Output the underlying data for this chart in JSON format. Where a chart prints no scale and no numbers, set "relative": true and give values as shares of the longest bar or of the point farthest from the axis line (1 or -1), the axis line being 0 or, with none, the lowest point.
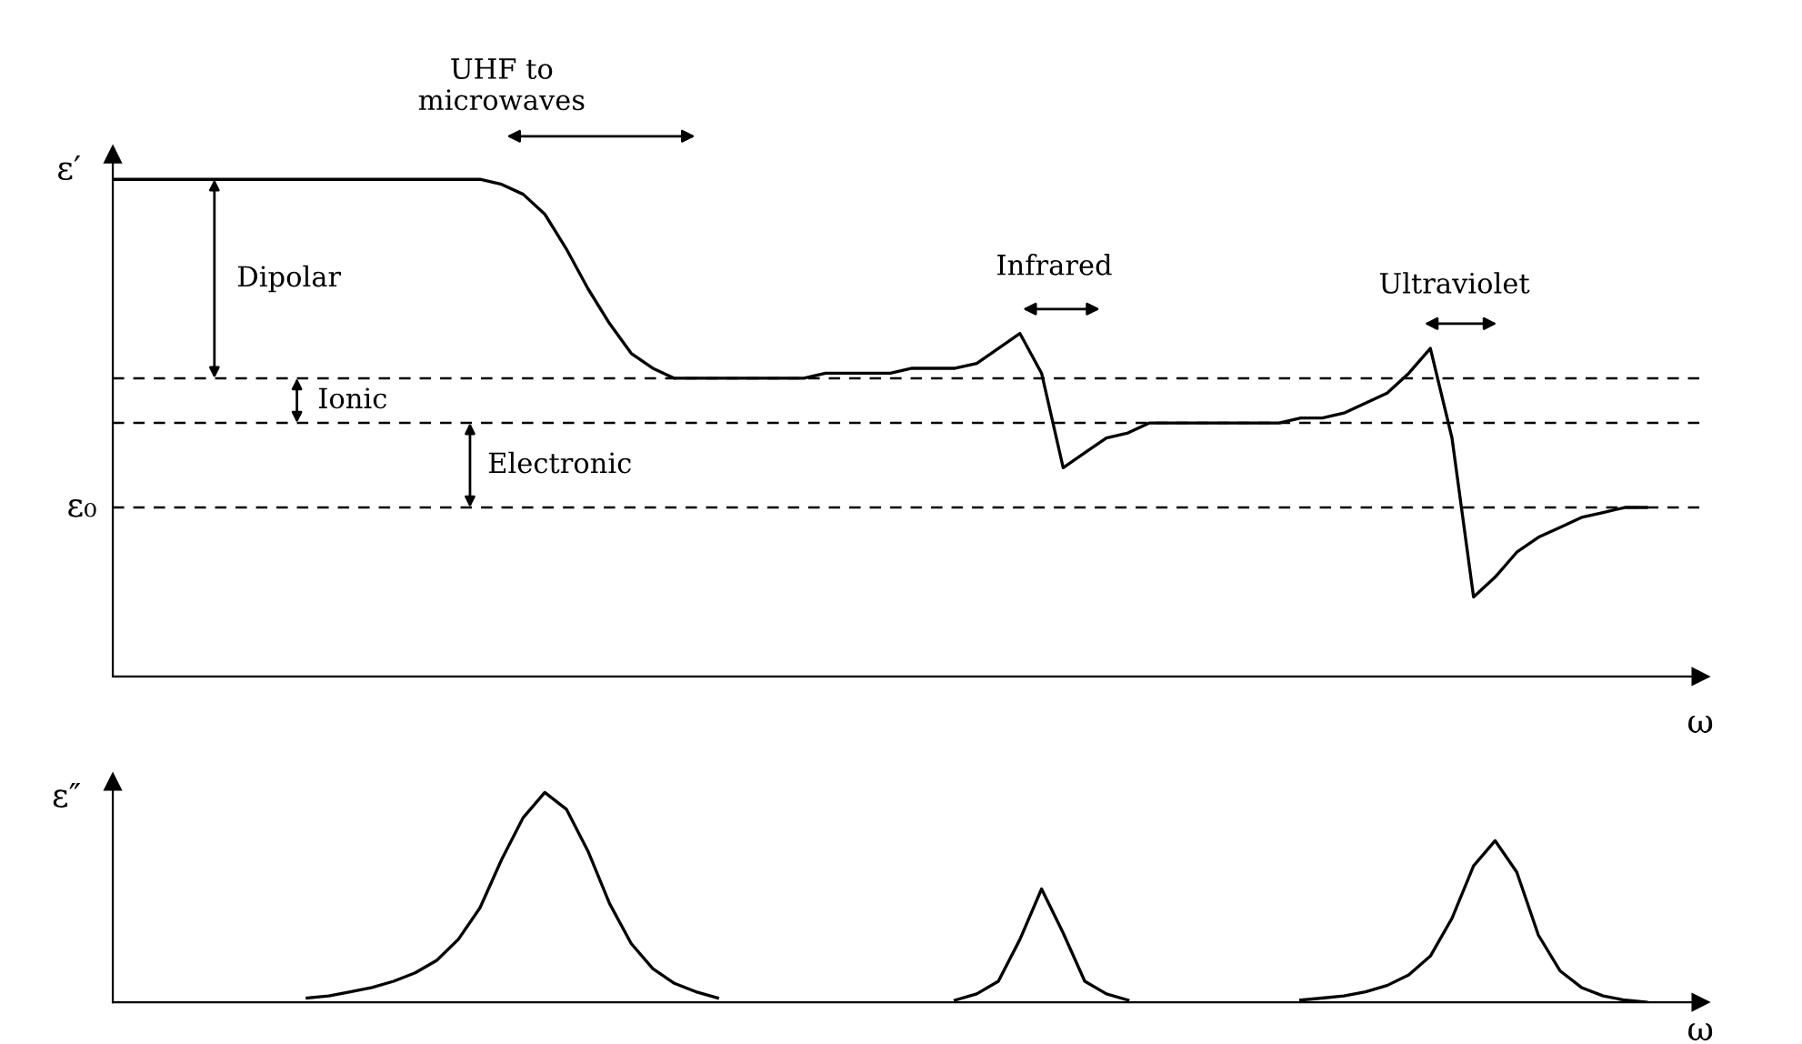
{
  "chart_data": [
    {
      "type": "line",
      "relative": true,
      "tick_labels": false,
      "ylabel": "ε′",
      "xlabel": "ω",
      "categories": [
        null,
        null,
        null,
        null,
        null,
        null,
        null,
        null,
        null,
        null,
        null,
        null,
        null,
        null,
        null,
        null,
        null,
        null,
        null,
        null,
        null,
        null,
        null,
        null,
        null,
        null,
        null,
        null,
        null,
        null,
        null,
        null,
        null,
        null,
        null,
        null,
        null,
        null,
        null,
        null,
        null,
        null,
        null,
        null,
        null,
        null,
        null,
        null,
        null,
        null,
        null,
        null,
        null,
        null,
        null,
        null,
        null,
        null,
        null,
        null,
        null,
        null,
        null,
        null,
        null,
        null,
        null,
        null,
        null,
        null,
        null,
        null,
        null
      ],
      "series": [
        {
          "color": "#000000",
          "values": [
            1.0,
            1.0,
            1.0,
            1.0,
            1.0,
            1.0,
            1.0,
            1.0,
            1.0,
            1.0,
            1.0,
            1.0,
            1.0,
            1.0,
            1.0,
            1.0,
            1.0,
            1.0,
            0.99,
            0.97,
            0.93,
            0.86,
            0.78,
            0.71,
            0.65,
            0.62,
            0.6,
            0.6,
            0.6,
            0.6,
            0.6,
            0.6,
            0.6,
            0.61,
            0.61,
            0.61,
            0.61,
            0.62,
            0.62,
            0.62,
            0.63,
            0.66,
            0.69,
            0.61,
            0.42,
            0.45,
            0.48,
            0.49,
            0.51,
            0.51,
            0.51,
            0.51,
            0.51,
            0.51,
            0.51,
            0.52,
            0.52,
            0.53,
            0.55,
            0.57,
            0.61,
            0.66,
            0.48,
            0.16,
            0.2,
            0.25,
            0.28,
            0.3,
            0.32,
            0.33,
            0.34,
            0.34,
            null
          ]
        }
      ],
      "ref_lines": [
        {
          "axis": "y",
          "value": 0.6,
          "line_style": "dashed"
        },
        {
          "axis": "y",
          "value": 0.51,
          "line_style": "dashed"
        },
        {
          "axis": "y",
          "value": 0.34,
          "line_style": "dashed",
          "label": "ε₀"
        }
      ],
      "annotations": [
        "UHF to\nmicrowaves",
        "Dipolar",
        "Ionic",
        "Electronic",
        "Infrared",
        "Ultraviolet"
      ]
    },
    {
      "type": "line",
      "relative": true,
      "tick_labels": false,
      "ylabel": "ε″",
      "xlabel": "ω",
      "categories": [
        null,
        null,
        null,
        null,
        null,
        null,
        null,
        null,
        null,
        null,
        null,
        null,
        null,
        null,
        null,
        null,
        null,
        null,
        null,
        null,
        null,
        null,
        null,
        null,
        null,
        null,
        null,
        null,
        null,
        null,
        null,
        null,
        null,
        null,
        null,
        null,
        null,
        null,
        null,
        null,
        null,
        null,
        null,
        null,
        null,
        null,
        null,
        null,
        null,
        null,
        null,
        null,
        null,
        null,
        null,
        null,
        null,
        null,
        null,
        null,
        null,
        null,
        null,
        null,
        null,
        null,
        null,
        null,
        null,
        null,
        null,
        null,
        null
      ],
      "series": [
        {
          "color": "#000000",
          "values": [
            null,
            null,
            null,
            null,
            null,
            null,
            null,
            null,
            null,
            0.02,
            0.03,
            0.05,
            0.07,
            0.1,
            0.14,
            0.2,
            0.3,
            0.45,
            0.68,
            0.88,
            1.0,
            0.92,
            0.72,
            0.47,
            0.28,
            0.16,
            0.09,
            0.05,
            0.02,
            null,
            null,
            null,
            null,
            null,
            null,
            null,
            null,
            null,
            null,
            0.01,
            0.04,
            0.1,
            0.3,
            0.54,
            0.33,
            0.1,
            0.04,
            0.01,
            null,
            null,
            null,
            null,
            null,
            null,
            null,
            0.01,
            0.02,
            0.03,
            0.05,
            0.08,
            0.13,
            0.22,
            0.4,
            0.65,
            0.77,
            0.62,
            0.32,
            0.15,
            0.07,
            0.03,
            0.01,
            0.0,
            null
          ]
        }
      ]
    }
  ]
}
